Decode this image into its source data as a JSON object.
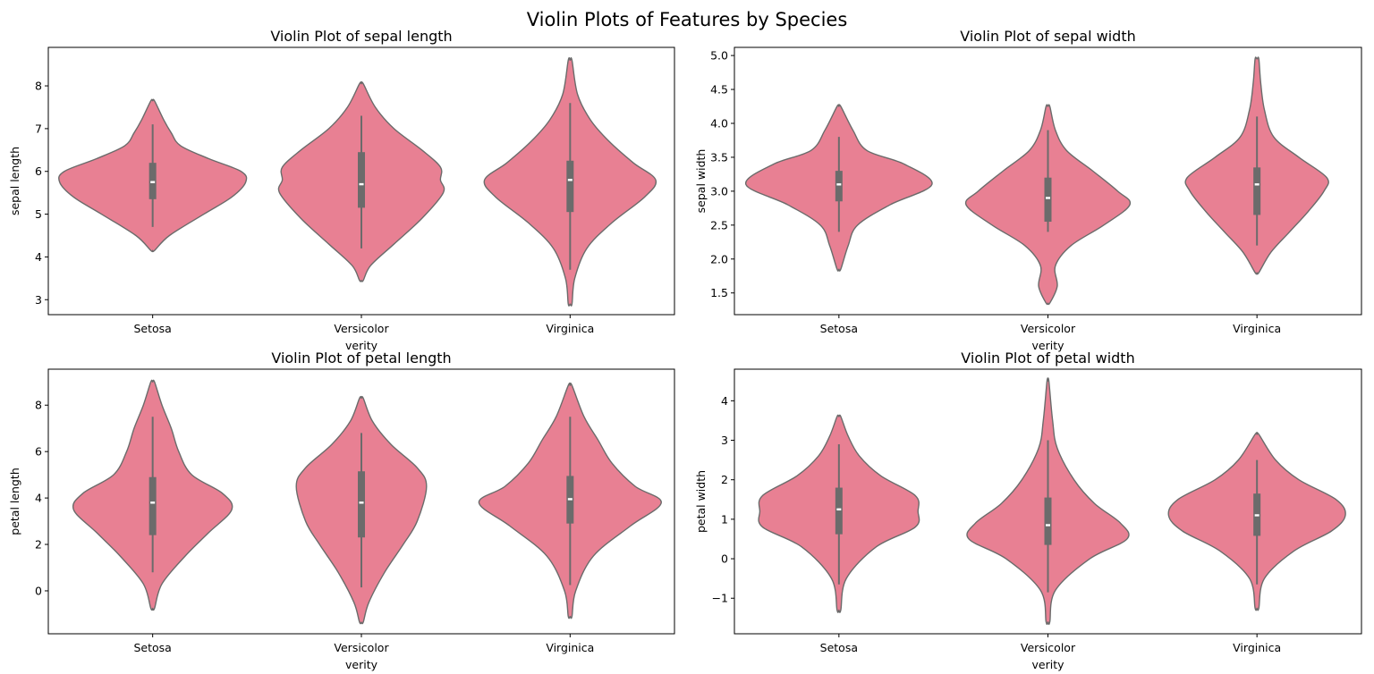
{
  "suptitle": "Violin Plots of Features by Species",
  "colors": {
    "violin_fill": "#e88093",
    "violin_edge": "#6b6b6b",
    "box": "#6b6b6b",
    "median": "#ffffff"
  },
  "chart_data": [
    {
      "type": "violin",
      "title": "Violin Plot of sepal length",
      "xlabel": "verity",
      "ylabel": "sepal length",
      "categories": [
        "Setosa",
        "Versicolor",
        "Virginica"
      ],
      "ylim": [
        2.65,
        8.9
      ],
      "yticks": [
        3,
        4,
        5,
        6,
        7,
        8
      ],
      "violins": [
        {
          "min": 4.15,
          "max": 7.65,
          "median": 5.75,
          "q1": 5.35,
          "q3": 6.2,
          "whisker_low": 4.7,
          "whisker_high": 7.1,
          "profile": [
            [
              4.15,
              0.02
            ],
            [
              4.5,
              0.18
            ],
            [
              5.0,
              0.55
            ],
            [
              5.4,
              0.85
            ],
            [
              5.75,
              1.0
            ],
            [
              6.0,
              0.95
            ],
            [
              6.3,
              0.6
            ],
            [
              6.6,
              0.3
            ],
            [
              6.9,
              0.2
            ],
            [
              7.2,
              0.12
            ],
            [
              7.65,
              0.02
            ]
          ]
        },
        {
          "min": 3.45,
          "max": 8.05,
          "median": 5.7,
          "q1": 5.15,
          "q3": 6.45,
          "whisker_low": 4.2,
          "whisker_high": 7.3,
          "profile": [
            [
              3.45,
              0.02
            ],
            [
              3.8,
              0.1
            ],
            [
              4.3,
              0.35
            ],
            [
              4.9,
              0.65
            ],
            [
              5.5,
              0.88
            ],
            [
              5.8,
              0.85
            ],
            [
              6.1,
              0.85
            ],
            [
              6.5,
              0.65
            ],
            [
              7.0,
              0.35
            ],
            [
              7.5,
              0.15
            ],
            [
              8.05,
              0.02
            ]
          ]
        },
        {
          "min": 2.9,
          "max": 8.6,
          "median": 5.8,
          "q1": 5.05,
          "q3": 6.25,
          "whisker_low": 3.7,
          "whisker_high": 7.6,
          "profile": [
            [
              2.9,
              0.02
            ],
            [
              3.5,
              0.05
            ],
            [
              4.2,
              0.18
            ],
            [
              4.8,
              0.45
            ],
            [
              5.4,
              0.8
            ],
            [
              5.8,
              0.92
            ],
            [
              6.2,
              0.68
            ],
            [
              6.7,
              0.42
            ],
            [
              7.2,
              0.22
            ],
            [
              7.8,
              0.08
            ],
            [
              8.6,
              0.02
            ]
          ]
        }
      ]
    },
    {
      "type": "violin",
      "title": "Violin Plot of sepal width",
      "xlabel": "verity",
      "ylabel": "sepal width",
      "categories": [
        "Setosa",
        "Versicolor",
        "Virginica"
      ],
      "ylim": [
        1.18,
        5.12
      ],
      "yticks": [
        1.5,
        2.0,
        2.5,
        3.0,
        3.5,
        4.0,
        4.5,
        5.0
      ],
      "ytick_labels": [
        "1.5",
        "2.0",
        "2.5",
        "3.0",
        "3.5",
        "4.0",
        "4.5",
        "5.0"
      ],
      "violins": [
        {
          "min": 1.85,
          "max": 4.25,
          "median": 3.1,
          "q1": 2.85,
          "q3": 3.3,
          "whisker_low": 2.4,
          "whisker_high": 3.8,
          "profile": [
            [
              1.85,
              0.02
            ],
            [
              2.2,
              0.1
            ],
            [
              2.5,
              0.2
            ],
            [
              2.8,
              0.55
            ],
            [
              3.1,
              1.0
            ],
            [
              3.4,
              0.7
            ],
            [
              3.6,
              0.3
            ],
            [
              3.9,
              0.15
            ],
            [
              4.25,
              0.02
            ]
          ]
        },
        {
          "min": 1.35,
          "max": 4.25,
          "median": 2.9,
          "q1": 2.55,
          "q3": 3.2,
          "whisker_low": 2.4,
          "whisker_high": 3.9,
          "profile": [
            [
              1.35,
              0.02
            ],
            [
              1.6,
              0.1
            ],
            [
              1.9,
              0.08
            ],
            [
              2.2,
              0.25
            ],
            [
              2.5,
              0.6
            ],
            [
              2.8,
              0.88
            ],
            [
              3.0,
              0.75
            ],
            [
              3.3,
              0.48
            ],
            [
              3.6,
              0.2
            ],
            [
              3.9,
              0.08
            ],
            [
              4.25,
              0.02
            ]
          ]
        },
        {
          "min": 1.8,
          "max": 4.95,
          "median": 3.1,
          "q1": 2.65,
          "q3": 3.35,
          "whisker_low": 2.2,
          "whisker_high": 4.1,
          "profile": [
            [
              1.8,
              0.02
            ],
            [
              2.1,
              0.15
            ],
            [
              2.4,
              0.35
            ],
            [
              2.7,
              0.55
            ],
            [
              3.0,
              0.72
            ],
            [
              3.2,
              0.75
            ],
            [
              3.5,
              0.45
            ],
            [
              3.8,
              0.18
            ],
            [
              4.2,
              0.08
            ],
            [
              4.6,
              0.04
            ],
            [
              4.95,
              0.02
            ]
          ]
        }
      ]
    },
    {
      "type": "violin",
      "title": "Violin Plot of petal length",
      "xlabel": "verity",
      "ylabel": "petal length",
      "categories": [
        "Setosa",
        "Versicolor",
        "Virginica"
      ],
      "ylim": [
        -1.85,
        9.55
      ],
      "yticks": [
        0,
        2,
        4,
        6,
        8
      ],
      "violins": [
        {
          "min": -0.75,
          "max": 9.0,
          "median": 3.8,
          "q1": 2.4,
          "q3": 4.9,
          "whisker_low": 0.8,
          "whisker_high": 7.5,
          "profile": [
            [
              -0.75,
              0.02
            ],
            [
              0.3,
              0.1
            ],
            [
              1.5,
              0.35
            ],
            [
              2.5,
              0.6
            ],
            [
              3.5,
              0.85
            ],
            [
              4.2,
              0.75
            ],
            [
              5.0,
              0.42
            ],
            [
              6.0,
              0.28
            ],
            [
              7.0,
              0.2
            ],
            [
              8.0,
              0.1
            ],
            [
              9.0,
              0.02
            ]
          ]
        },
        {
          "min": -1.35,
          "max": 8.3,
          "median": 3.8,
          "q1": 2.3,
          "q3": 5.15,
          "whisker_low": 0.15,
          "whisker_high": 6.8,
          "profile": [
            [
              -1.35,
              0.02
            ],
            [
              -0.5,
              0.08
            ],
            [
              0.8,
              0.25
            ],
            [
              2.0,
              0.45
            ],
            [
              3.0,
              0.6
            ],
            [
              4.5,
              0.7
            ],
            [
              5.3,
              0.6
            ],
            [
              6.3,
              0.32
            ],
            [
              7.3,
              0.12
            ],
            [
              8.3,
              0.02
            ]
          ]
        },
        {
          "min": -1.1,
          "max": 8.85,
          "median": 3.95,
          "q1": 2.9,
          "q3": 4.95,
          "whisker_low": 0.25,
          "whisker_high": 7.5,
          "profile": [
            [
              -1.1,
              0.02
            ],
            [
              0.0,
              0.06
            ],
            [
              1.5,
              0.25
            ],
            [
              2.8,
              0.65
            ],
            [
              3.8,
              0.98
            ],
            [
              4.5,
              0.7
            ],
            [
              5.5,
              0.45
            ],
            [
              6.5,
              0.3
            ],
            [
              7.5,
              0.15
            ],
            [
              8.85,
              0.02
            ]
          ]
        }
      ]
    },
    {
      "type": "violin",
      "title": "Violin Plot of petal width",
      "xlabel": "verity",
      "ylabel": "petal width",
      "categories": [
        "Setosa",
        "Versicolor",
        "Virginica"
      ],
      "ylim": [
        -1.9,
        4.8
      ],
      "yticks": [
        -1,
        0,
        1,
        2,
        3,
        4
      ],
      "ytick_labels": [
        "−1",
        "0",
        "1",
        "2",
        "3",
        "4"
      ],
      "violins": [
        {
          "min": -1.3,
          "max": 3.6,
          "median": 1.25,
          "q1": 0.62,
          "q3": 1.8,
          "whisker_low": -0.65,
          "whisker_high": 2.9,
          "profile": [
            [
              -1.3,
              0.02
            ],
            [
              -0.5,
              0.08
            ],
            [
              0.3,
              0.4
            ],
            [
              0.8,
              0.82
            ],
            [
              1.2,
              0.85
            ],
            [
              1.6,
              0.82
            ],
            [
              2.1,
              0.45
            ],
            [
              2.6,
              0.22
            ],
            [
              3.1,
              0.1
            ],
            [
              3.6,
              0.02
            ]
          ]
        },
        {
          "min": -1.6,
          "max": 4.5,
          "median": 0.85,
          "q1": 0.35,
          "q3": 1.55,
          "whisker_low": -0.85,
          "whisker_high": 3.0,
          "profile": [
            [
              -1.6,
              0.02
            ],
            [
              -0.8,
              0.08
            ],
            [
              0.0,
              0.45
            ],
            [
              0.5,
              0.85
            ],
            [
              0.9,
              0.78
            ],
            [
              1.4,
              0.5
            ],
            [
              2.0,
              0.28
            ],
            [
              2.8,
              0.1
            ],
            [
              3.5,
              0.05
            ],
            [
              4.5,
              0.01
            ]
          ]
        },
        {
          "min": -1.25,
          "max": 3.15,
          "median": 1.1,
          "q1": 0.58,
          "q3": 1.65,
          "whisker_low": -0.65,
          "whisker_high": 2.5,
          "profile": [
            [
              -1.25,
              0.02
            ],
            [
              -0.5,
              0.08
            ],
            [
              0.2,
              0.4
            ],
            [
              0.7,
              0.8
            ],
            [
              1.1,
              0.95
            ],
            [
              1.5,
              0.85
            ],
            [
              2.0,
              0.45
            ],
            [
              2.5,
              0.2
            ],
            [
              3.15,
              0.02
            ]
          ]
        }
      ]
    }
  ]
}
